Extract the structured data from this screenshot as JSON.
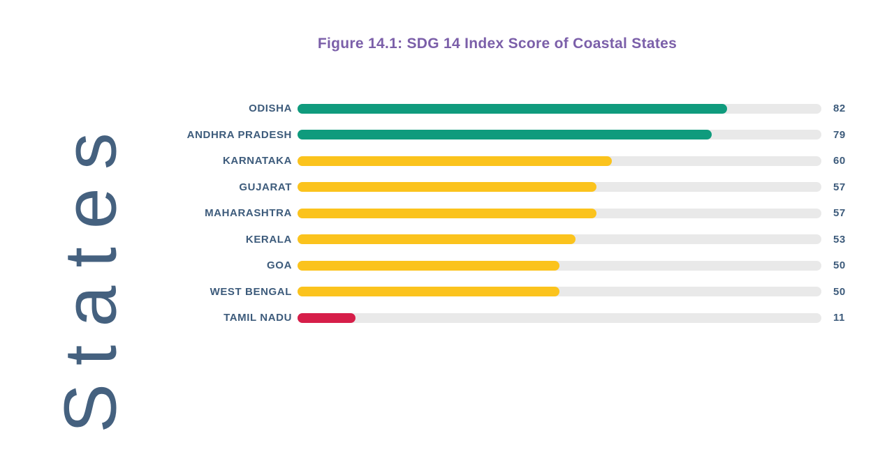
{
  "chart_data": {
    "type": "bar",
    "orientation": "horizontal",
    "title": "Figure 14.1: SDG 14 Index Score of Coastal States",
    "ylabel": "States",
    "xlabel": "",
    "xlim": [
      0,
      100
    ],
    "grid": false,
    "legend": false,
    "categories": [
      "ODISHA",
      "ANDHRA PRADESH",
      "KARNATAKA",
      "GUJARAT",
      "MAHARASHTRA",
      "KERALA",
      "GOA",
      "WEST BENGAL",
      "TAMIL NADU"
    ],
    "values": [
      82,
      79,
      60,
      57,
      57,
      53,
      50,
      50,
      11
    ],
    "bar_colors": [
      "#0f9b7d",
      "#0f9b7d",
      "#fbc31d",
      "#fbc31d",
      "#fbc31d",
      "#fbc31d",
      "#fbc31d",
      "#fbc31d",
      "#d61e49"
    ],
    "colors": {
      "green": "#0f9b7d",
      "yellow": "#fbc31d",
      "red": "#d61e49",
      "track": "#e9e9e9",
      "label_text": "#3d5b7b",
      "title_text": "#7b5fa9",
      "axis_label_text": "#45617f",
      "background": "#ffffff"
    }
  }
}
